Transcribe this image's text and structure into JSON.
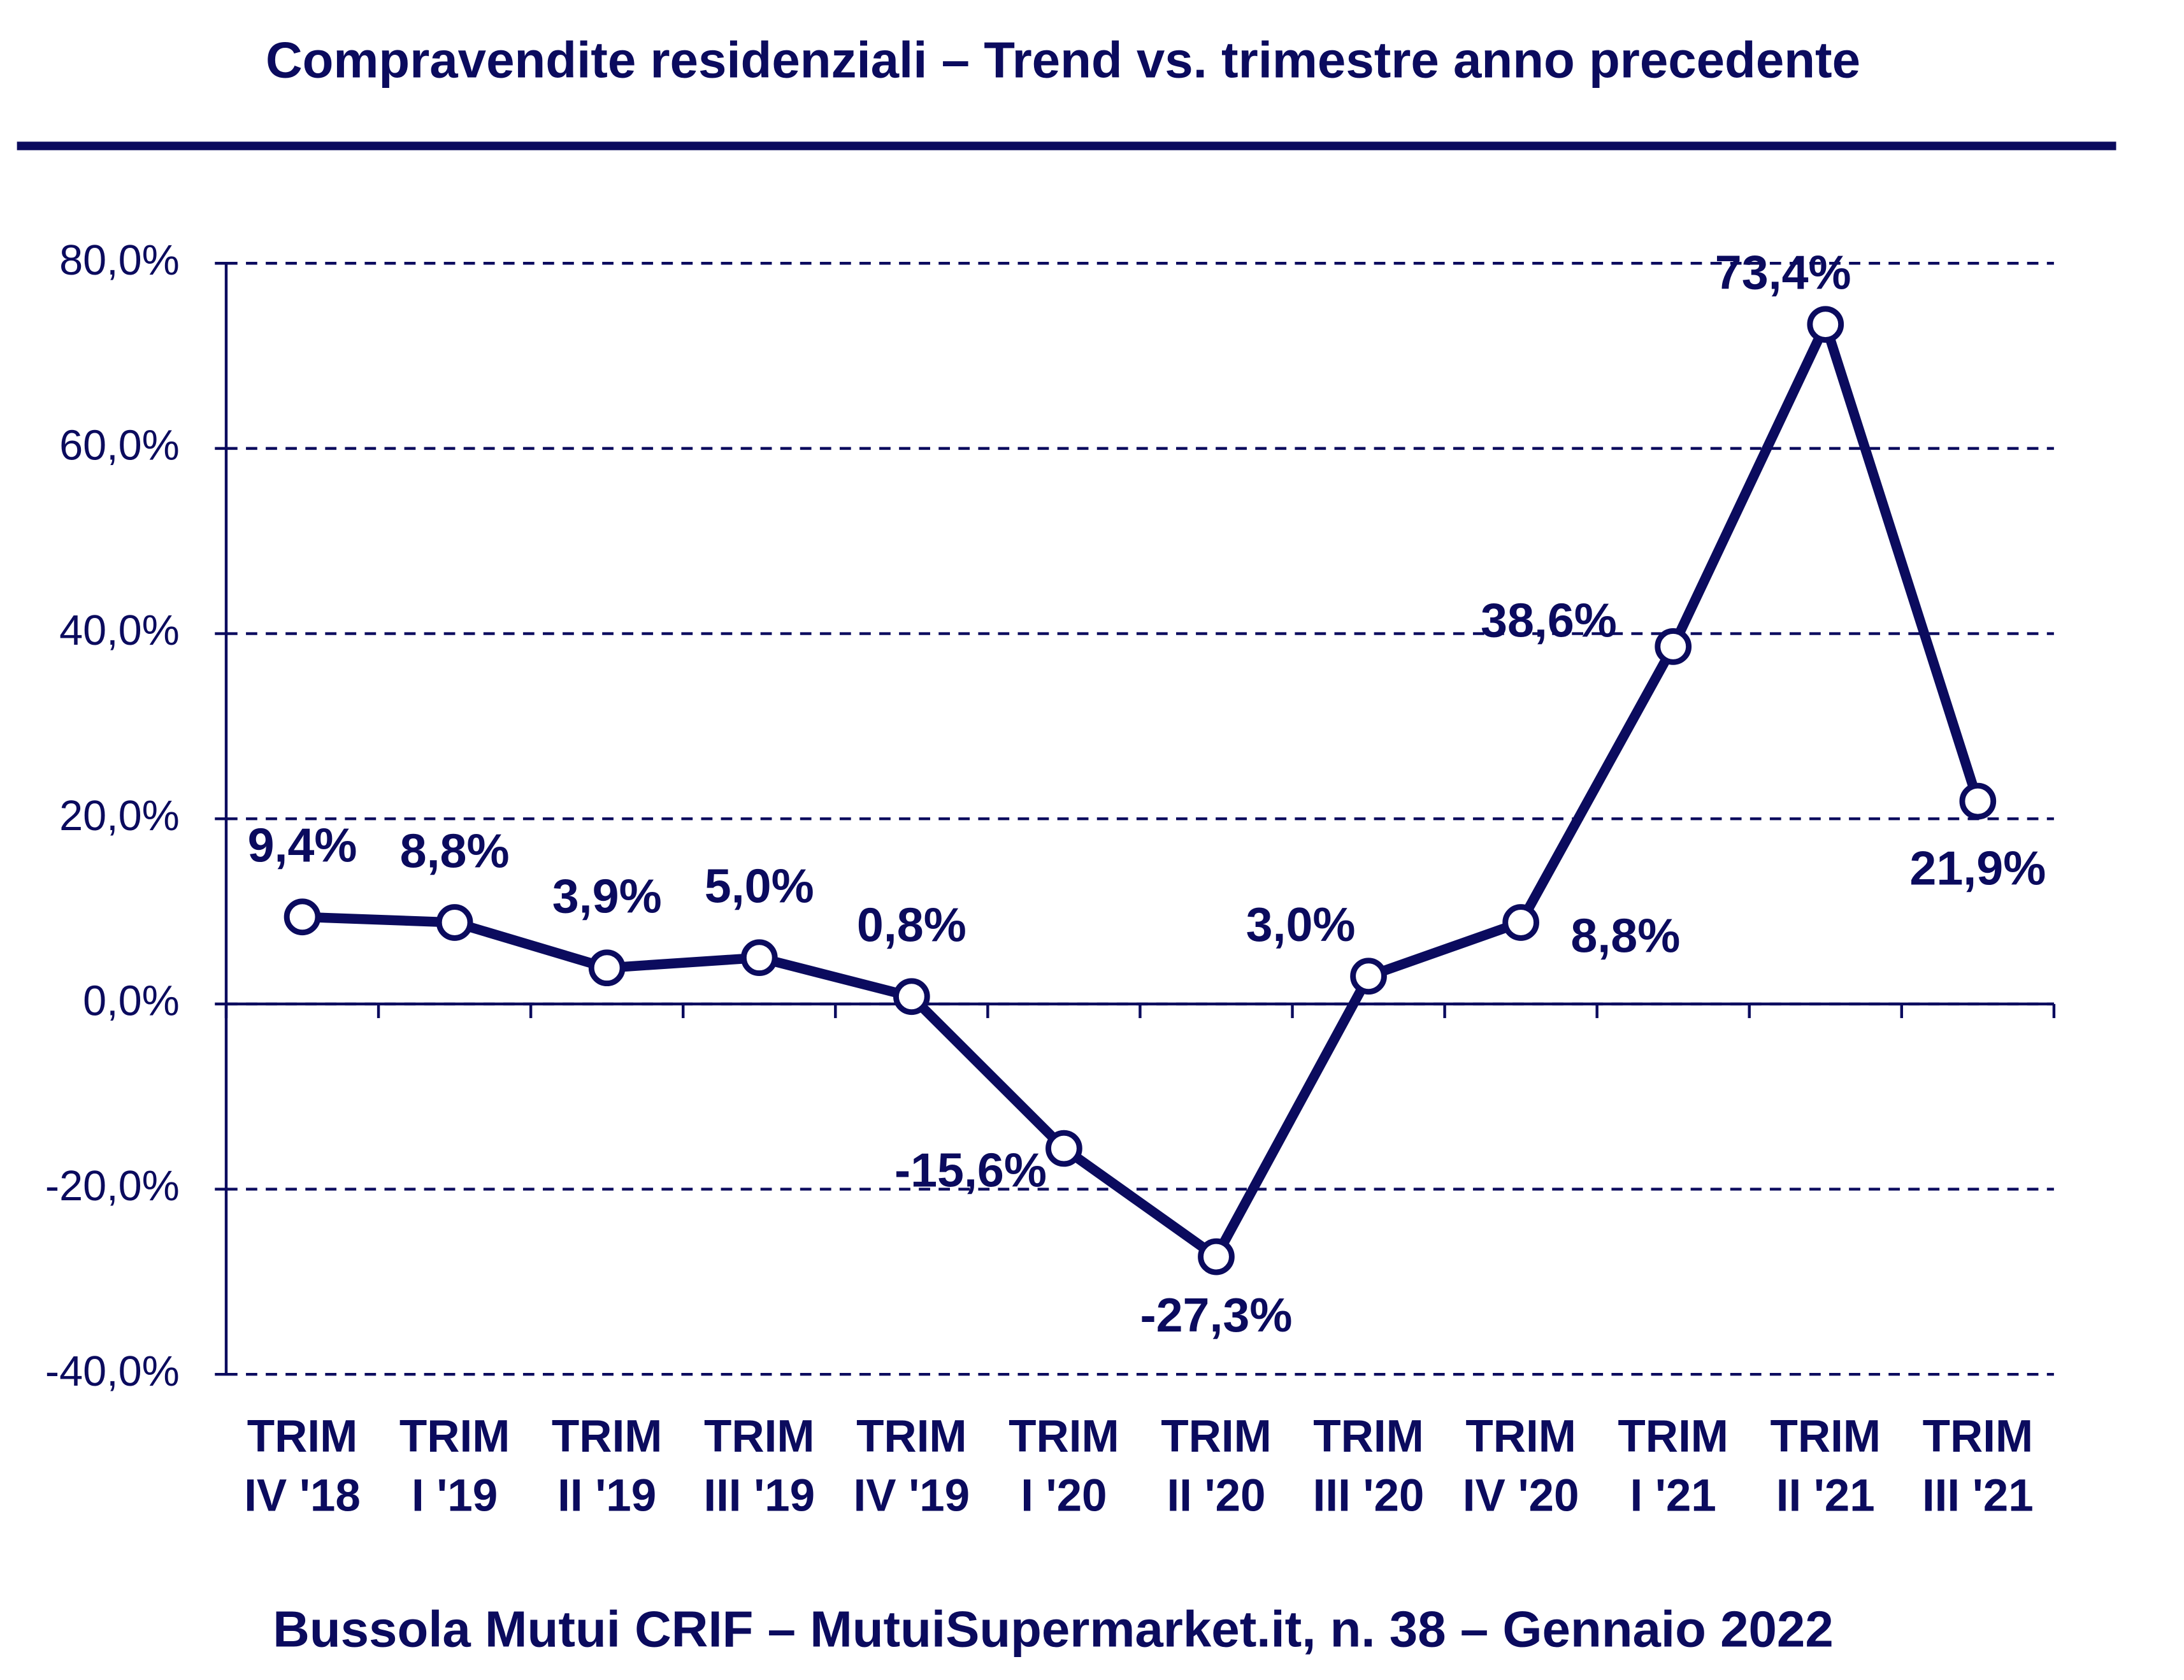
{
  "chart_data": {
    "type": "line",
    "title": "Compravendite residenziali – Trend vs. trimestre anno precedente",
    "footer": "Bussola Mutui CRIF – MutuiSupermarket.it, n. 38 – Gennaio 2022",
    "categories": [
      "TRIM IV '18",
      "TRIM I '19",
      "TRIM II '19",
      "TRIM III '19",
      "TRIM IV '19",
      "TRIM I '20",
      "TRIM II '20",
      "TRIM III '20",
      "TRIM IV '20",
      "TRIM I '21",
      "TRIM II '21",
      "TRIM III '21"
    ],
    "values": [
      9.4,
      8.8,
      3.9,
      5.0,
      0.8,
      -15.6,
      -27.3,
      3.0,
      8.8,
      38.6,
      73.4,
      21.9
    ],
    "value_labels": [
      "9,4%",
      "8,8%",
      "3,9%",
      "5,0%",
      "0,8%",
      "-15,6%",
      "-27,3%",
      "3,0%",
      "8,8%",
      "38,6%",
      "73,4%",
      "21,9%"
    ],
    "color": "#0b0b5e",
    "ylim": [
      -40,
      80
    ],
    "yticks": [
      {
        "value": -40,
        "label": "-40,0%"
      },
      {
        "value": -20,
        "label": "-20,0%"
      },
      {
        "value": 0,
        "label": "0,0%"
      },
      {
        "value": 20,
        "label": "20,0%"
      },
      {
        "value": 40,
        "label": "40,0%"
      },
      {
        "value": 60,
        "label": "60,0%"
      },
      {
        "value": 80,
        "label": "80,0%"
      }
    ],
    "grid": true
  }
}
